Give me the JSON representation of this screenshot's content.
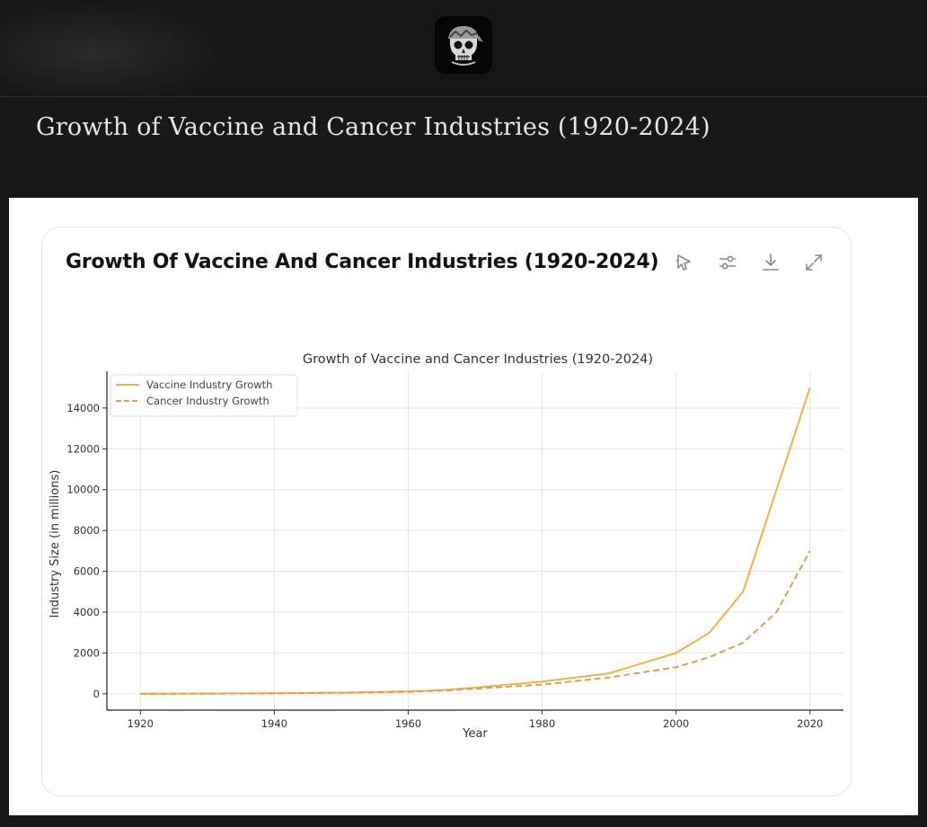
{
  "header": {
    "avatar_icon": "skull-bandana-icon",
    "page_title": "Growth of Vaccine and Cancer Industries (1920-2024)"
  },
  "card": {
    "title": "Growth Of Vaccine And Cancer Industries (1920-2024)",
    "tools": [
      "sparkle-pointer-icon",
      "sliders-icon",
      "download-icon",
      "expand-icon"
    ]
  },
  "chart_data": {
    "type": "line",
    "title": "Growth of Vaccine and Cancer Industries (1920-2024)",
    "xlabel": "Year",
    "ylabel": "Industry Size (in millions)",
    "xlim": [
      1915,
      2025
    ],
    "ylim": [
      -800,
      15800
    ],
    "x_ticks": [
      1920,
      1940,
      1960,
      1980,
      2000,
      2020
    ],
    "y_ticks": [
      0,
      2000,
      4000,
      6000,
      8000,
      10000,
      12000,
      14000
    ],
    "grid": true,
    "legend": "top-left",
    "series": [
      {
        "name": "Vaccine Industry Growth",
        "color": "#f5b042",
        "style": "solid",
        "x": [
          1920,
          1930,
          1940,
          1950,
          1960,
          1965,
          1970,
          1980,
          1990,
          2000,
          2005,
          2010,
          2015,
          2020
        ],
        "y": [
          0,
          10,
          30,
          60,
          120,
          180,
          300,
          600,
          1000,
          2000,
          3000,
          5000,
          10000,
          15000
        ]
      },
      {
        "name": "Cancer Industry Growth",
        "color": "#d9a155",
        "style": "dashed",
        "x": [
          1920,
          1930,
          1940,
          1950,
          1960,
          1965,
          1970,
          1980,
          1990,
          2000,
          2005,
          2010,
          2015,
          2020
        ],
        "y": [
          0,
          8,
          20,
          50,
          100,
          150,
          250,
          450,
          800,
          1300,
          1800,
          2500,
          4000,
          7000
        ]
      }
    ]
  }
}
